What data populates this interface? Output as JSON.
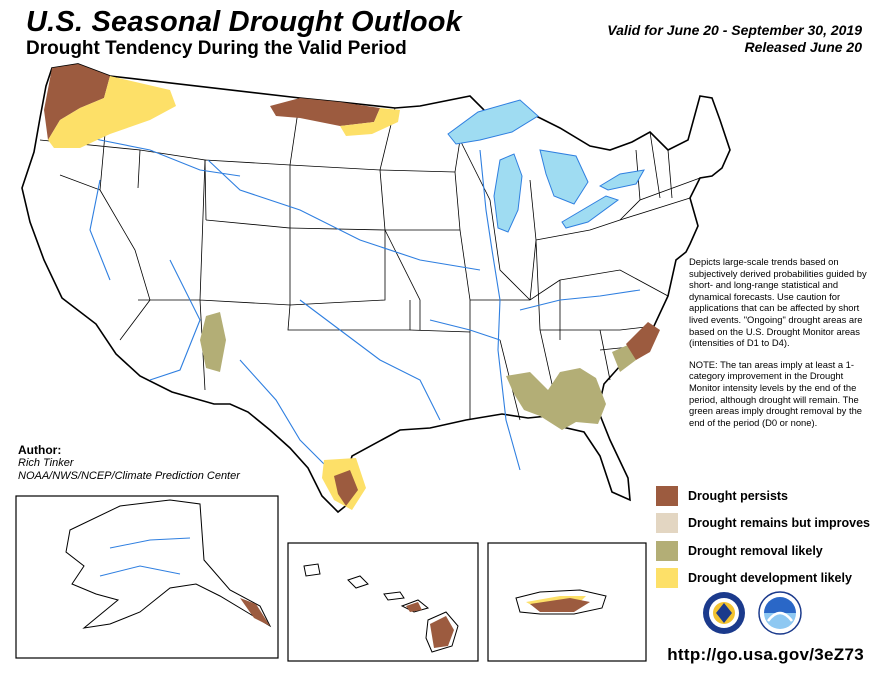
{
  "header": {
    "title": "U.S. Seasonal Drought Outlook",
    "subtitle": "Drought Tendency During the Valid Period",
    "valid_for": "Valid for June 20 - September 30, 2019",
    "released": "Released June 20"
  },
  "description": {
    "paragraph_1": "Depicts large-scale trends based on subjectively derived probabilities guided by short- and long-range statistical and dynamical forecasts. Use caution for applications that can be affected by short lived events. \"Ongoing\" drought areas are based on the U.S. Drought Monitor areas (intensities of D1 to D4).",
    "paragraph_2": "NOTE: The tan areas imply at least a 1-category improvement in the Drought Monitor intensity levels by the end of the period, although drought will remain. The green areas imply drought removal by the end of the period (D0 or none)."
  },
  "author": {
    "label": "Author:",
    "name": "Rich Tinker",
    "org": "NOAA/NWS/NCEP/Climate Prediction Center"
  },
  "legend": [
    {
      "label": "Drought persists",
      "color": "#9c5b3f"
    },
    {
      "label": "Drought remains but improves",
      "color": "#e3d6c2"
    },
    {
      "label": "Drought removal likely",
      "color": "#b3ae76"
    },
    {
      "label": "Drought development likely",
      "color": "#fde068"
    }
  ],
  "colors": {
    "water": "#9fdcf2",
    "rivers": "#2f7fe0",
    "boundaries": "#000000",
    "persists": "#9c5b3f",
    "removal": "#b3ae76",
    "development": "#fde068"
  },
  "logos": [
    "nws-logo-icon",
    "noaa-logo-icon"
  ],
  "url": "http://go.usa.gov/3eZ73"
}
